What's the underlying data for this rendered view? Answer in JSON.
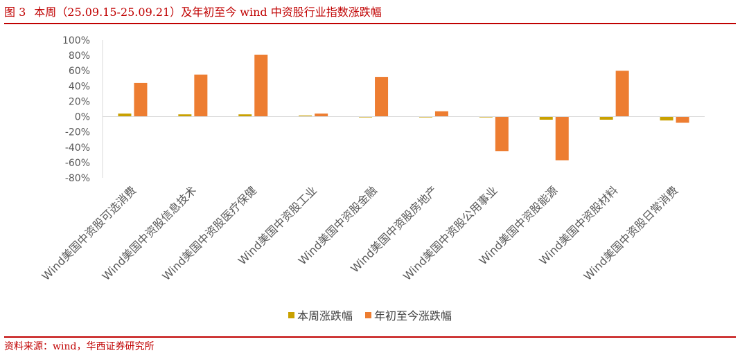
{
  "figure": {
    "number": "图 3",
    "title": "本周（25.09.15-25.09.21）及年初至今 wind 中资股行业指数涨跌幅"
  },
  "source": "资料来源：wind，华西证券研究所",
  "colors": {
    "accent": "#c00000",
    "weekly": "#c9a100",
    "ytd": "#ed7d31",
    "axis": "#d9d9d9"
  },
  "chart_data": {
    "type": "bar",
    "categories": [
      "Wind美国中资股可选消费",
      "Wind美国中资股信息技术",
      "Wind美国中资股医疗保健",
      "Wind美国中资股工业",
      "Wind美国中资股金融",
      "Wind美国中资股房地产",
      "Wind美国中资股公用事业",
      "Wind美国中资股能源",
      "Wind美国中资股材料",
      "Wind美国中资股日常消费"
    ],
    "series": [
      {
        "name": "本周涨跌幅",
        "color": "#c9a100",
        "values": [
          4,
          3,
          3,
          1.5,
          -1,
          -1,
          -1,
          -4,
          -4,
          -5
        ]
      },
      {
        "name": "年初至今涨跌幅",
        "color": "#ed7d31",
        "values": [
          44,
          55,
          81,
          4,
          52,
          7,
          -45,
          -57,
          60,
          -8
        ]
      }
    ],
    "ylim": [
      -80,
      100
    ],
    "yticks": [
      -80,
      -60,
      -40,
      -20,
      0,
      20,
      40,
      60,
      80,
      100
    ],
    "ytick_labels": [
      "-80%",
      "-60%",
      "-40%",
      "-20%",
      "0%",
      "20%",
      "40%",
      "60%",
      "80%",
      "100%"
    ],
    "grid": false,
    "legend_position": "bottom-center"
  }
}
